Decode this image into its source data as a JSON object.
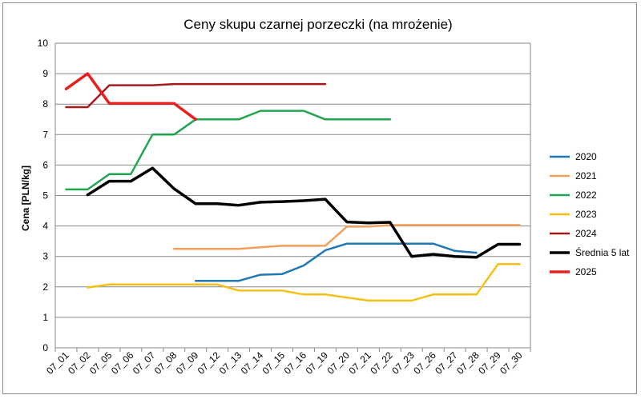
{
  "chart_data": {
    "type": "line",
    "title": "Ceny skupu czarnej porzeczki (na mrożenie)",
    "xlabel": "",
    "ylabel": "Cena [PLN/kg]",
    "ylim": [
      0,
      10
    ],
    "yticks": [
      "0",
      "1",
      "2",
      "3",
      "4",
      "5",
      "6",
      "7",
      "8",
      "9",
      "10"
    ],
    "grid": true,
    "legend_position": "right",
    "categories": [
      "07_01",
      "07_02",
      "07_05",
      "07_06",
      "07_07",
      "07_08",
      "07_09",
      "07_12",
      "07_13",
      "07_14",
      "07_15",
      "07_16",
      "07_19",
      "07_20",
      "07_21",
      "07_22",
      "07_23",
      "07_26",
      "07_27",
      "07_28",
      "07_29",
      "07_30"
    ],
    "series": [
      {
        "name": "2020",
        "color": "#1f77b4",
        "width": 2.5,
        "values": [
          null,
          null,
          null,
          null,
          null,
          null,
          2.2,
          2.2,
          2.2,
          2.4,
          2.42,
          2.7,
          3.2,
          3.42,
          3.42,
          3.42,
          3.42,
          3.42,
          3.18,
          3.12,
          null,
          null
        ]
      },
      {
        "name": "2021",
        "color": "#f0a05a",
        "width": 2.5,
        "values": [
          null,
          null,
          null,
          null,
          null,
          3.25,
          3.25,
          3.25,
          3.25,
          3.3,
          3.35,
          3.35,
          3.35,
          3.98,
          3.98,
          4.03,
          4.03,
          4.03,
          4.03,
          4.03,
          4.03,
          4.03
        ]
      },
      {
        "name": "2022",
        "color": "#22a550",
        "width": 2.5,
        "values": [
          5.2,
          5.2,
          5.7,
          5.7,
          7.0,
          7.0,
          7.5,
          7.5,
          7.5,
          7.78,
          7.78,
          7.78,
          7.5,
          7.5,
          7.5,
          7.5,
          null,
          null,
          null,
          null,
          null,
          null
        ]
      },
      {
        "name": "2023",
        "color": "#f5c016",
        "width": 2.5,
        "values": [
          null,
          1.98,
          2.08,
          2.08,
          2.08,
          2.08,
          2.08,
          2.08,
          1.88,
          1.88,
          1.88,
          1.75,
          1.75,
          1.65,
          1.55,
          1.55,
          1.55,
          1.75,
          1.75,
          1.75,
          2.75,
          2.75
        ]
      },
      {
        "name": "2024",
        "color": "#a51a1a",
        "width": 2.5,
        "values": [
          7.9,
          7.9,
          8.62,
          8.62,
          8.62,
          8.66,
          8.66,
          8.66,
          8.66,
          8.66,
          8.66,
          8.66,
          8.66,
          null,
          null,
          null,
          null,
          null,
          null,
          null,
          null,
          null
        ]
      },
      {
        "name": "Średnia 5 lat",
        "color": "#000000",
        "width": 3.5,
        "values": [
          null,
          5.02,
          5.47,
          5.47,
          5.9,
          5.22,
          4.73,
          4.73,
          4.68,
          4.78,
          4.8,
          4.83,
          4.88,
          4.13,
          4.1,
          4.12,
          3.0,
          3.07,
          3.0,
          2.97,
          3.4,
          3.4
        ]
      },
      {
        "name": "2025",
        "color": "#e5201f",
        "width": 3.5,
        "values": [
          8.5,
          9.0,
          8.02,
          8.02,
          8.02,
          8.02,
          7.5,
          null,
          null,
          null,
          null,
          null,
          null,
          null,
          null,
          null,
          null,
          null,
          null,
          null,
          null,
          null
        ]
      }
    ]
  }
}
